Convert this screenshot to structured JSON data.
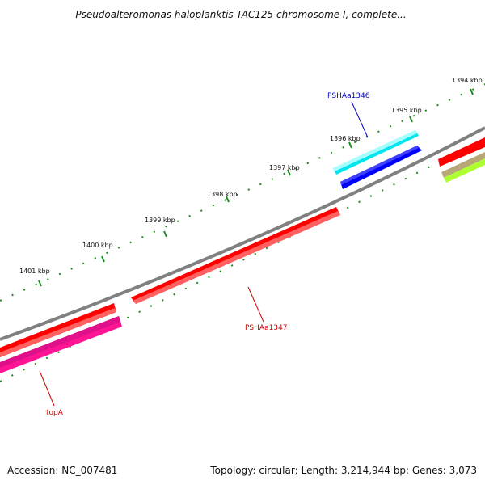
{
  "title": "Pseudoalteromonas haloplanktis TAC125 chromosome I, complete...",
  "footer": {
    "accession": "Accession: NC_007481",
    "summary": "Topology: circular; Length: 3,214,944 bp; Genes: 3,073"
  },
  "ruler": {
    "labels": [
      "1394 kbp",
      "1395 kbp",
      "1396 kbp",
      "1397 kbp",
      "1398 kbp",
      "1399 kbp",
      "1400 kbp",
      "1401 kbp"
    ]
  },
  "genes": [
    {
      "name": "PSHAa1346",
      "color": "#00ffff",
      "label_color": "#0000cc",
      "labeled": true
    },
    {
      "name": "PSHAa1347",
      "color": "#ff0000",
      "label_color": "#cc0000",
      "labeled": true
    },
    {
      "name": "topA",
      "color": "#ff1493",
      "label_color": "#cc0000",
      "labeled": true
    },
    {
      "name": "",
      "color": "#0000ff",
      "labeled": false
    },
    {
      "name": "",
      "color": "#ff0000",
      "labeled": false
    },
    {
      "name": "",
      "color": "#c0a878",
      "labeled": false
    },
    {
      "name": "",
      "color": "#adff2f",
      "labeled": false
    }
  ],
  "colors": {
    "backbone": "#808080",
    "ticks": "#1a8a1a",
    "forward_strand": "#ff0000",
    "reverse_strand": "#ff1493"
  }
}
